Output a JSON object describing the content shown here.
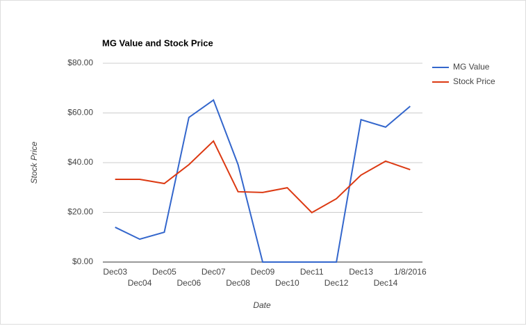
{
  "chart_data": {
    "type": "line",
    "title": "MG Value and Stock Price",
    "x_label": "Date",
    "y_label": "Stock Price",
    "categories": [
      "Dec03",
      "Dec04",
      "Dec05",
      "Dec06",
      "Dec07",
      "Dec08",
      "Dec09",
      "Dec10",
      "Dec11",
      "Dec12",
      "Dec13",
      "Dec14",
      "1/8/2016"
    ],
    "series": [
      {
        "name": "MG Value",
        "color": "#3366cc",
        "values": [
          14.0,
          9.2,
          12.0,
          58.2,
          65.2,
          39.2,
          0,
          0,
          0,
          0,
          57.3,
          54.3,
          62.7
        ]
      },
      {
        "name": "Stock Price",
        "color": "#dc3912",
        "values": [
          33.3,
          33.3,
          31.6,
          39.2,
          48.7,
          28.3,
          28.0,
          29.9,
          19.9,
          25.5,
          35.0,
          40.6,
          37.2
        ]
      }
    ],
    "ylim": [
      0,
      80
    ],
    "yticks": [
      {
        "value": 0,
        "label": "$0.00"
      },
      {
        "value": 20,
        "label": "$20.00"
      },
      {
        "value": 40,
        "label": "$40.00"
      },
      {
        "value": 60,
        "label": "$60.00"
      },
      {
        "value": 80,
        "label": "$80.00"
      }
    ],
    "grid": true,
    "legend": "right"
  }
}
